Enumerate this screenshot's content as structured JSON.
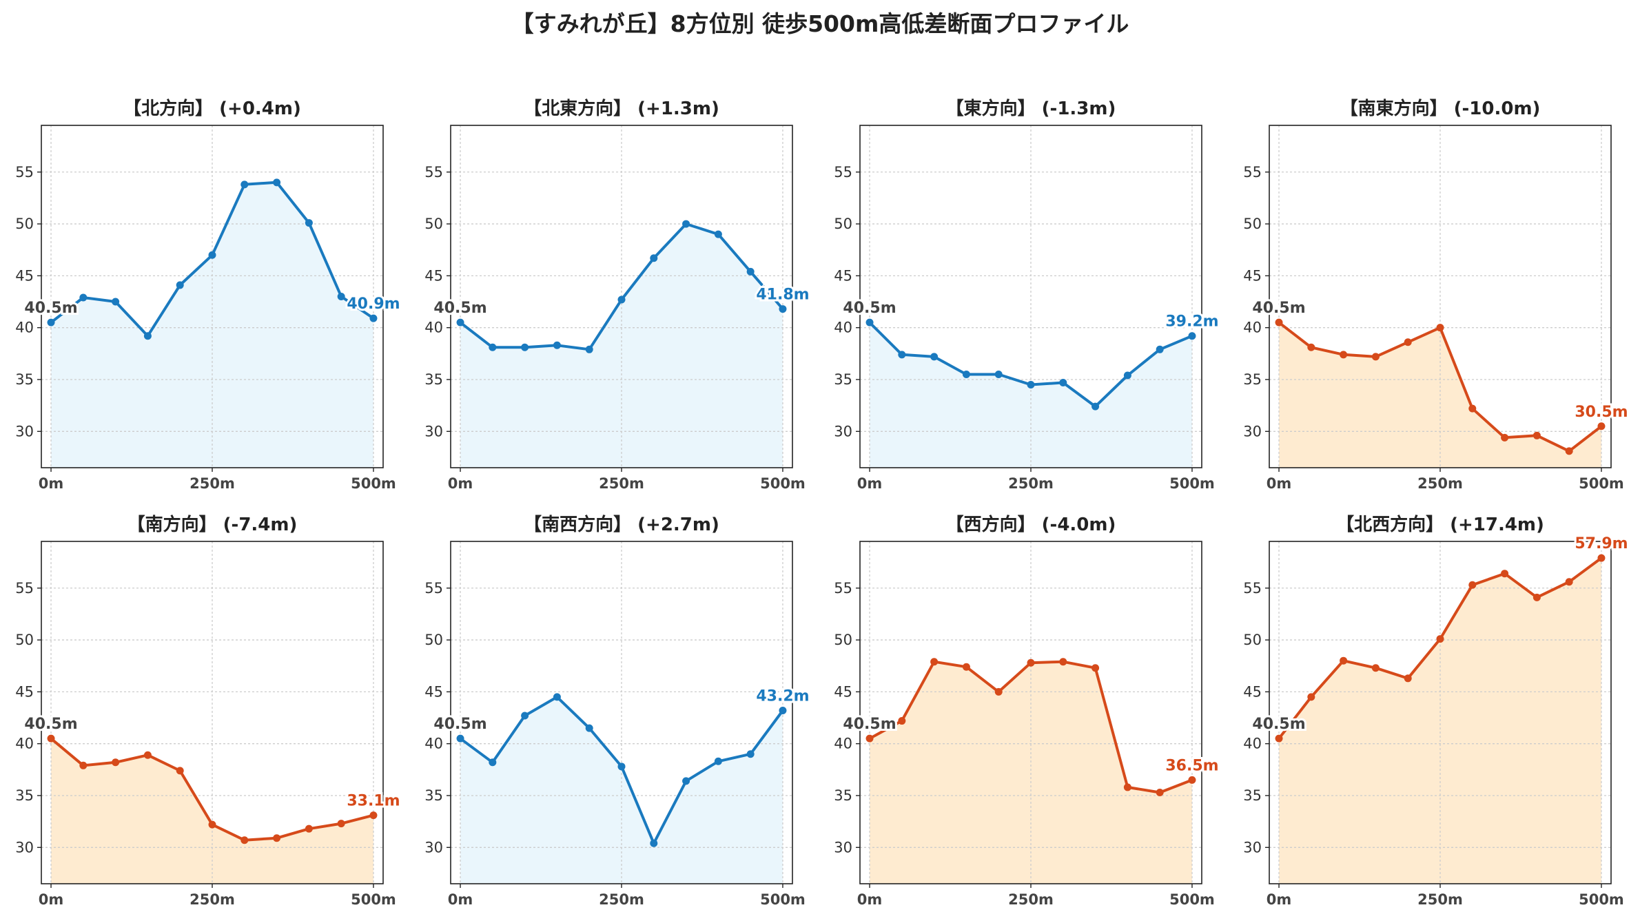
{
  "title": "【すみれが丘】8方位別 徒歩500m高低差断面プロファイル",
  "colors": {
    "up_line": "#1a7abf",
    "up_fill": "#eaf6fc",
    "down_line": "#d64a1a",
    "down_fill": "#feebd0",
    "start_label": "#444444",
    "grid": "#cccccc"
  },
  "chart_data": [
    {
      "type": "area",
      "title": "【北方向】 (+0.4m)",
      "trend": "up",
      "x": [
        0,
        50,
        100,
        150,
        200,
        250,
        300,
        350,
        400,
        450,
        500
      ],
      "values": [
        40.5,
        42.9,
        42.5,
        39.2,
        44.1,
        47.0,
        53.8,
        54.0,
        50.1,
        43.0,
        40.9
      ],
      "start_label": "40.5m",
      "end_label": "40.9m",
      "xticks": [
        "0m",
        "250m",
        "500m"
      ],
      "yticks": [
        "30",
        "35",
        "40",
        "45",
        "50",
        "55"
      ],
      "xlim": [
        -15,
        515
      ],
      "ylim": [
        26.5,
        59.5
      ],
      "grid": true
    },
    {
      "type": "area",
      "title": "【北東方向】 (+1.3m)",
      "trend": "up",
      "x": [
        0,
        50,
        100,
        150,
        200,
        250,
        300,
        350,
        400,
        450,
        500
      ],
      "values": [
        40.5,
        38.1,
        38.1,
        38.3,
        37.9,
        42.7,
        46.7,
        50.0,
        49.0,
        45.4,
        41.8
      ],
      "start_label": "40.5m",
      "end_label": "41.8m",
      "xticks": [
        "0m",
        "250m",
        "500m"
      ],
      "yticks": [
        "30",
        "35",
        "40",
        "45",
        "50",
        "55"
      ],
      "xlim": [
        -15,
        515
      ],
      "ylim": [
        26.5,
        59.5
      ],
      "grid": true
    },
    {
      "type": "area",
      "title": "【東方向】 (-1.3m)",
      "trend": "up",
      "x": [
        0,
        50,
        100,
        150,
        200,
        250,
        300,
        350,
        400,
        450,
        500
      ],
      "values": [
        40.5,
        37.4,
        37.2,
        35.5,
        35.5,
        34.5,
        34.7,
        32.4,
        35.4,
        37.9,
        39.2
      ],
      "start_label": "40.5m",
      "end_label": "39.2m",
      "xticks": [
        "0m",
        "250m",
        "500m"
      ],
      "yticks": [
        "30",
        "35",
        "40",
        "45",
        "50",
        "55"
      ],
      "xlim": [
        -15,
        515
      ],
      "ylim": [
        26.5,
        59.5
      ],
      "grid": true
    },
    {
      "type": "area",
      "title": "【南東方向】 (-10.0m)",
      "trend": "down",
      "x": [
        0,
        50,
        100,
        150,
        200,
        250,
        300,
        350,
        400,
        450,
        500
      ],
      "values": [
        40.5,
        38.1,
        37.4,
        37.2,
        38.6,
        40.0,
        32.2,
        29.4,
        29.6,
        28.1,
        30.5
      ],
      "start_label": "40.5m",
      "end_label": "30.5m",
      "xticks": [
        "0m",
        "250m",
        "500m"
      ],
      "yticks": [
        "30",
        "35",
        "40",
        "45",
        "50",
        "55"
      ],
      "xlim": [
        -15,
        515
      ],
      "ylim": [
        26.5,
        59.5
      ],
      "grid": true
    },
    {
      "type": "area",
      "title": "【南方向】 (-7.4m)",
      "trend": "down",
      "x": [
        0,
        50,
        100,
        150,
        200,
        250,
        300,
        350,
        400,
        450,
        500
      ],
      "values": [
        40.5,
        37.9,
        38.2,
        38.9,
        37.4,
        32.2,
        30.7,
        30.9,
        31.8,
        32.3,
        33.1
      ],
      "start_label": "40.5m",
      "end_label": "33.1m",
      "xticks": [
        "0m",
        "250m",
        "500m"
      ],
      "yticks": [
        "30",
        "35",
        "40",
        "45",
        "50",
        "55"
      ],
      "xlim": [
        -15,
        515
      ],
      "ylim": [
        26.5,
        59.5
      ],
      "grid": true
    },
    {
      "type": "area",
      "title": "【南西方向】 (+2.7m)",
      "trend": "up",
      "x": [
        0,
        50,
        100,
        150,
        200,
        250,
        300,
        350,
        400,
        450,
        500
      ],
      "values": [
        40.5,
        38.2,
        42.7,
        44.5,
        41.5,
        37.8,
        30.4,
        36.4,
        38.3,
        39.0,
        43.2
      ],
      "start_label": "40.5m",
      "end_label": "43.2m",
      "xticks": [
        "0m",
        "250m",
        "500m"
      ],
      "yticks": [
        "30",
        "35",
        "40",
        "45",
        "50",
        "55"
      ],
      "xlim": [
        -15,
        515
      ],
      "ylim": [
        26.5,
        59.5
      ],
      "grid": true
    },
    {
      "type": "area",
      "title": "【西方向】 (-4.0m)",
      "trend": "down",
      "x": [
        0,
        50,
        100,
        150,
        200,
        250,
        300,
        350,
        400,
        450,
        500
      ],
      "values": [
        40.5,
        42.2,
        47.9,
        47.4,
        45.0,
        47.8,
        47.9,
        47.3,
        35.8,
        35.3,
        36.5
      ],
      "start_label": "40.5m",
      "end_label": "36.5m",
      "xticks": [
        "0m",
        "250m",
        "500m"
      ],
      "yticks": [
        "30",
        "35",
        "40",
        "45",
        "50",
        "55"
      ],
      "xlim": [
        -15,
        515
      ],
      "ylim": [
        26.5,
        59.5
      ],
      "grid": true
    },
    {
      "type": "area",
      "title": "【北西方向】 (+17.4m)",
      "trend": "down",
      "x": [
        0,
        50,
        100,
        150,
        200,
        250,
        300,
        350,
        400,
        450,
        500
      ],
      "values": [
        40.5,
        44.5,
        48.0,
        47.3,
        46.3,
        50.1,
        55.3,
        56.4,
        54.1,
        55.6,
        57.9
      ],
      "start_label": "40.5m",
      "end_label": "57.9m",
      "xticks": [
        "0m",
        "250m",
        "500m"
      ],
      "yticks": [
        "30",
        "35",
        "40",
        "45",
        "50",
        "55"
      ],
      "xlim": [
        -15,
        515
      ],
      "ylim": [
        26.5,
        59.5
      ],
      "grid": true
    }
  ]
}
